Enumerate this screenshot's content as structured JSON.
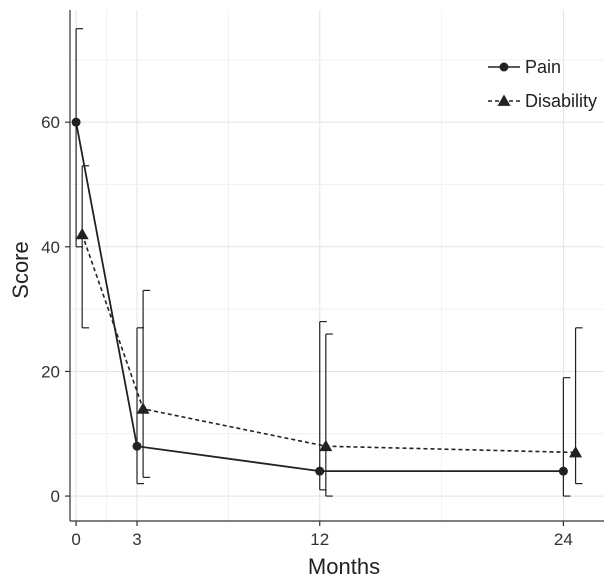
{
  "chart_data": {
    "type": "line",
    "title": "",
    "xlabel": "Months",
    "ylabel": "Score",
    "x_ticks": [
      0,
      3,
      12,
      24
    ],
    "y_ticks": [
      0,
      20,
      40,
      60
    ],
    "xlim": [
      -0.3,
      26
    ],
    "ylim": [
      -4,
      78
    ],
    "grid": true,
    "legend_position": "top-right",
    "series": [
      {
        "name": "Pain",
        "marker": "circle",
        "line_style": "solid",
        "color": "#222222",
        "points": [
          {
            "x": 0,
            "y": 60,
            "lower": 40,
            "upper": 75
          },
          {
            "x": 3,
            "y": 8,
            "lower": 2,
            "upper": 27
          },
          {
            "x": 12,
            "y": 4,
            "lower": 1,
            "upper": 28
          },
          {
            "x": 24,
            "y": 4,
            "lower": 0,
            "upper": 19
          }
        ]
      },
      {
        "name": "Disability",
        "marker": "triangle",
        "line_style": "dashed",
        "color": "#222222",
        "points": [
          {
            "x": 0.3,
            "y": 42,
            "lower": 27,
            "upper": 53
          },
          {
            "x": 3.3,
            "y": 14,
            "lower": 3,
            "upper": 33
          },
          {
            "x": 12.3,
            "y": 8,
            "lower": 0,
            "upper": 26
          },
          {
            "x": 24.6,
            "y": 7,
            "lower": 2,
            "upper": 27
          }
        ]
      }
    ]
  }
}
